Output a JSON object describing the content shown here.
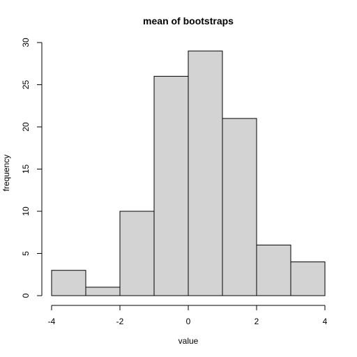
{
  "chart_data": {
    "type": "bar",
    "title": "mean of bootstraps",
    "xlabel": "value",
    "ylabel": "frequency",
    "bin_edges": [
      -4,
      -3,
      -2,
      -1,
      0,
      1,
      2,
      3,
      4
    ],
    "values": [
      3,
      1,
      10,
      26,
      29,
      21,
      6,
      4
    ],
    "xlim": [
      -4,
      4
    ],
    "ylim": [
      0,
      30
    ],
    "x_ticks": [
      -4,
      -2,
      0,
      2,
      4
    ],
    "y_ticks": [
      0,
      5,
      10,
      15,
      20,
      25,
      30
    ],
    "bar_color": "#d3d3d3",
    "grid": false
  }
}
